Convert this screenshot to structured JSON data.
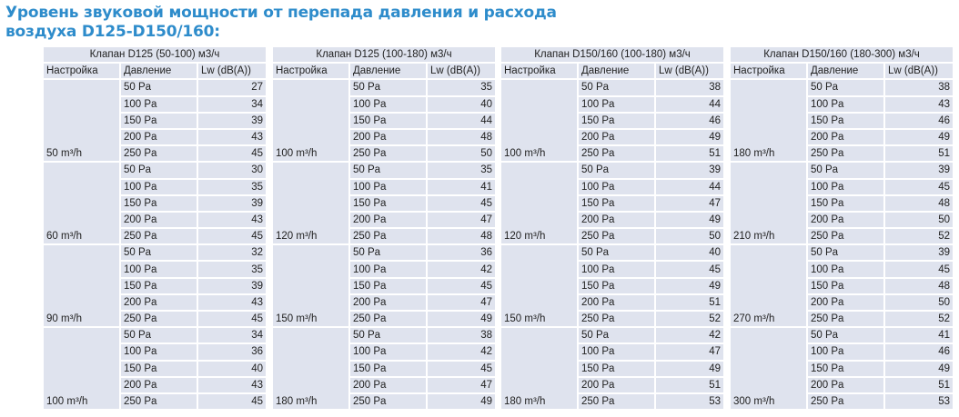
{
  "title_line1": "Уровень звуковой мощности от перепада давления и расхода",
  "title_line2": "воздуха D125-D150/160:",
  "columns": [
    "Настройка",
    "Давление",
    "Lw (dB(A))"
  ],
  "tables": [
    {
      "caption": "Клапан D125 (50-100) м3/ч",
      "groups": [
        {
          "setting": "50 m³/h",
          "rows": [
            [
              "50 Pa",
              "27"
            ],
            [
              "100 Pa",
              "34"
            ],
            [
              "150 Pa",
              "39"
            ],
            [
              "200 Pa",
              "43"
            ],
            [
              "250 Pa",
              "45"
            ]
          ]
        },
        {
          "setting": "60 m³/h",
          "rows": [
            [
              "50 Pa",
              "30"
            ],
            [
              "100 Pa",
              "35"
            ],
            [
              "150 Pa",
              "39"
            ],
            [
              "200 Pa",
              "43"
            ],
            [
              "250 Pa",
              "45"
            ]
          ]
        },
        {
          "setting": "90 m³/h",
          "rows": [
            [
              "50 Pa",
              "32"
            ],
            [
              "100 Pa",
              "35"
            ],
            [
              "150 Pa",
              "39"
            ],
            [
              "200 Pa",
              "43"
            ],
            [
              "250 Pa",
              "45"
            ]
          ]
        },
        {
          "setting": "100 m³/h",
          "rows": [
            [
              "50 Pa",
              "34"
            ],
            [
              "100 Pa",
              "36"
            ],
            [
              "150 Pa",
              "40"
            ],
            [
              "200 Pa",
              "43"
            ],
            [
              "250 Pa",
              "45"
            ]
          ]
        }
      ]
    },
    {
      "caption": "Клапан D125 (100-180) м3/ч",
      "groups": [
        {
          "setting": "100 m³/h",
          "rows": [
            [
              "50 Pa",
              "35"
            ],
            [
              "100 Pa",
              "40"
            ],
            [
              "150 Pa",
              "44"
            ],
            [
              "200 Pa",
              "48"
            ],
            [
              "250 Pa",
              "50"
            ]
          ]
        },
        {
          "setting": "120 m³/h",
          "rows": [
            [
              "50 Pa",
              "35"
            ],
            [
              "100 Pa",
              "41"
            ],
            [
              "150 Pa",
              "45"
            ],
            [
              "200 Pa",
              "47"
            ],
            [
              "250 Pa",
              "48"
            ]
          ]
        },
        {
          "setting": "150 m³/h",
          "rows": [
            [
              "50 Pa",
              "36"
            ],
            [
              "100 Pa",
              "42"
            ],
            [
              "150 Pa",
              "45"
            ],
            [
              "200 Pa",
              "47"
            ],
            [
              "250 Pa",
              "49"
            ]
          ]
        },
        {
          "setting": "180 m³/h",
          "rows": [
            [
              "50 Pa",
              "38"
            ],
            [
              "100 Pa",
              "42"
            ],
            [
              "150 Pa",
              "45"
            ],
            [
              "200 Pa",
              "47"
            ],
            [
              "250 Pa",
              "49"
            ]
          ]
        }
      ]
    },
    {
      "caption": "Клапан D150/160 (100-180) м3/ч",
      "groups": [
        {
          "setting": "100 m³/h",
          "rows": [
            [
              "50 Pa",
              "38"
            ],
            [
              "100 Pa",
              "44"
            ],
            [
              "150 Pa",
              "46"
            ],
            [
              "200 Pa",
              "49"
            ],
            [
              "250 Pa",
              "51"
            ]
          ]
        },
        {
          "setting": "120 m³/h",
          "rows": [
            [
              "50 Pa",
              "39"
            ],
            [
              "100 Pa",
              "44"
            ],
            [
              "150 Pa",
              "47"
            ],
            [
              "200 Pa",
              "49"
            ],
            [
              "250 Pa",
              "50"
            ]
          ]
        },
        {
          "setting": "150 m³/h",
          "rows": [
            [
              "50 Pa",
              "40"
            ],
            [
              "100 Pa",
              "45"
            ],
            [
              "150 Pa",
              "49"
            ],
            [
              "200 Pa",
              "51"
            ],
            [
              "250 Pa",
              "52"
            ]
          ]
        },
        {
          "setting": "180 m³/h",
          "rows": [
            [
              "50 Pa",
              "42"
            ],
            [
              "100 Pa",
              "47"
            ],
            [
              "150 Pa",
              "49"
            ],
            [
              "200 Pa",
              "51"
            ],
            [
              "250 Pa",
              "53"
            ]
          ]
        }
      ]
    },
    {
      "caption": "Клапан D150/160 (180-300) м3/ч",
      "groups": [
        {
          "setting": "180 m³/h",
          "rows": [
            [
              "50 Pa",
              "38"
            ],
            [
              "100 Pa",
              "43"
            ],
            [
              "150 Pa",
              "46"
            ],
            [
              "200 Pa",
              "49"
            ],
            [
              "250 Pa",
              "51"
            ]
          ]
        },
        {
          "setting": "210 m³/h",
          "rows": [
            [
              "50 Pa",
              "39"
            ],
            [
              "100 Pa",
              "45"
            ],
            [
              "150 Pa",
              "48"
            ],
            [
              "200 Pa",
              "50"
            ],
            [
              "250 Pa",
              "52"
            ]
          ]
        },
        {
          "setting": "270 m³/h",
          "rows": [
            [
              "50 Pa",
              "39"
            ],
            [
              "100 Pa",
              "45"
            ],
            [
              "150 Pa",
              "48"
            ],
            [
              "200 Pa",
              "50"
            ],
            [
              "250 Pa",
              "52"
            ]
          ]
        },
        {
          "setting": "300 m³/h",
          "rows": [
            [
              "50 Pa",
              "41"
            ],
            [
              "100 Pa",
              "46"
            ],
            [
              "150 Pa",
              "49"
            ],
            [
              "200 Pa",
              "51"
            ],
            [
              "250 Pa",
              "53"
            ]
          ]
        }
      ]
    }
  ]
}
